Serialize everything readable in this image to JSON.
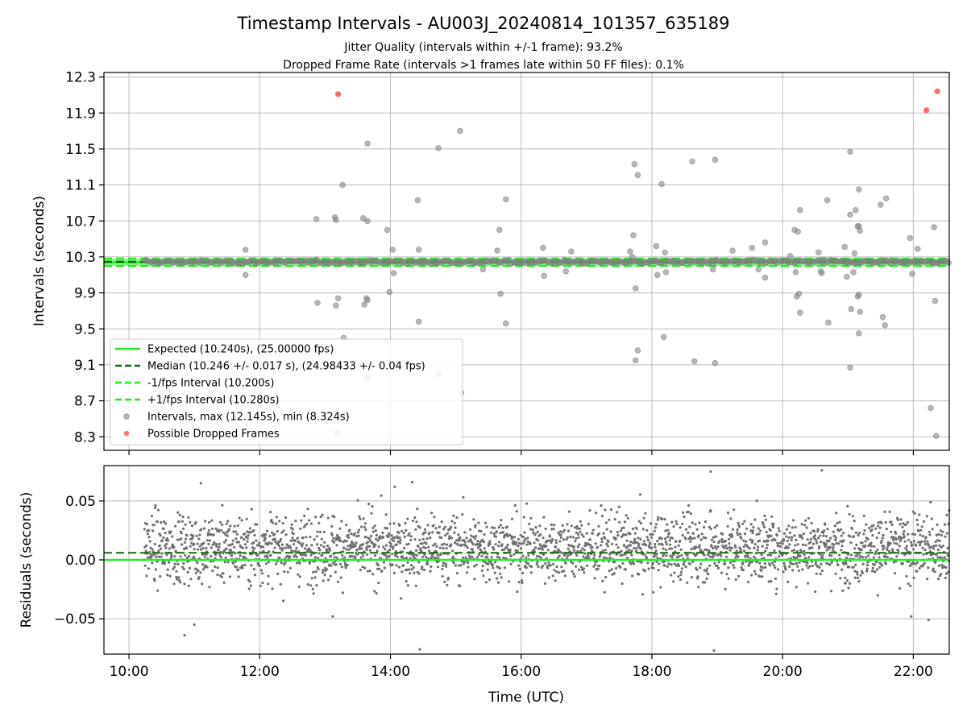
{
  "figure": {
    "title": "Timestamp Intervals - AU003J_20240814_101357_635189",
    "subtitle_1": "Jitter Quality (intervals within +/-1 frame): 93.2%",
    "subtitle_2": "Dropped Frame Rate (intervals >1 frames late within 50 FF files): 0.1%"
  },
  "colors": {
    "expected": "#22ee22",
    "median": "#0a6e0a",
    "fps_band": "#22ee22",
    "intervals": "#888888",
    "dropped": "#ff5555",
    "residuals": "#707070",
    "grid": "#bbbbbb"
  },
  "chart_data": [
    {
      "type": "scatter",
      "ylabel": "Intervals (seconds)",
      "xlim": [
        "09:37",
        "22:33"
      ],
      "ylim": [
        8.15,
        12.35
      ],
      "x_ticks": [
        "10:00",
        "12:00",
        "14:00",
        "16:00",
        "18:00",
        "20:00",
        "22:00"
      ],
      "y_ticks": [
        8.3,
        8.7,
        9.1,
        9.5,
        9.9,
        10.3,
        10.7,
        11.1,
        11.5,
        11.9,
        12.3
      ],
      "grid": true,
      "legend_position": "bottom-left",
      "series": [
        {
          "name": "Expected (10.240s), (25.00000 fps)",
          "style": "solid-line",
          "y": 10.24
        },
        {
          "name": "Median (10.246 +/- 0.017 s), (24.98433 +/- 0.04 fps)",
          "style": "dashed-line",
          "y": 10.246
        },
        {
          "name": "-1/fps Interval (10.200s)",
          "style": "dashed-line",
          "y": 10.2
        },
        {
          "name": "+1/fps Interval (10.280s)",
          "style": "dashed-line",
          "y": 10.28
        },
        {
          "name": "Intervals, max (12.145s), min (8.324s)",
          "style": "points",
          "x_start": "10:14",
          "x_end": "22:33",
          "band_center": 10.246,
          "band_halfwidth": 0.04,
          "outliers": [
            [
              "11:47",
              10.38
            ],
            [
              "11:47",
              10.1
            ],
            [
              "12:52",
              10.72
            ],
            [
              "12:53",
              9.79
            ],
            [
              "13:09",
              10.74
            ],
            [
              "13:10",
              10.71
            ],
            [
              "13:10",
              9.76
            ],
            [
              "13:11",
              8.35
            ],
            [
              "13:12",
              9.84
            ],
            [
              "13:16",
              11.1
            ],
            [
              "13:17",
              9.4
            ],
            [
              "13:35",
              10.73
            ],
            [
              "13:36",
              9.77
            ],
            [
              "13:38",
              9.84
            ],
            [
              "13:39",
              9.82
            ],
            [
              "13:39",
              10.7
            ],
            [
              "13:39",
              11.56
            ],
            [
              "13:39",
              8.95
            ],
            [
              "13:57",
              10.6
            ],
            [
              "13:59",
              9.91
            ],
            [
              "14:02",
              10.38
            ],
            [
              "14:03",
              10.12
            ],
            [
              "14:25",
              10.93
            ],
            [
              "14:26",
              9.58
            ],
            [
              "14:26",
              10.38
            ],
            [
              "14:44",
              11.51
            ],
            [
              "14:44",
              9.0
            ],
            [
              "15:04",
              11.7
            ],
            [
              "15:05",
              8.79
            ],
            [
              "15:25",
              10.16
            ],
            [
              "15:38",
              10.37
            ],
            [
              "15:40",
              10.6
            ],
            [
              "15:41",
              9.89
            ],
            [
              "15:46",
              10.94
            ],
            [
              "15:46",
              9.56
            ],
            [
              "16:20",
              10.4
            ],
            [
              "16:21",
              10.09
            ],
            [
              "16:41",
              10.14
            ],
            [
              "16:46",
              10.36
            ],
            [
              "17:40",
              10.36
            ],
            [
              "17:42",
              10.3
            ],
            [
              "17:43",
              10.54
            ],
            [
              "17:44",
              11.33
            ],
            [
              "17:45",
              9.95
            ],
            [
              "17:45",
              9.15
            ],
            [
              "17:47",
              9.26
            ],
            [
              "17:47",
              11.21
            ],
            [
              "18:04",
              10.42
            ],
            [
              "18:05",
              10.1
            ],
            [
              "18:09",
              11.11
            ],
            [
              "18:11",
              9.41
            ],
            [
              "18:12",
              10.35
            ],
            [
              "18:13",
              10.13
            ],
            [
              "18:37",
              11.36
            ],
            [
              "18:39",
              9.14
            ],
            [
              "18:56",
              10.16
            ],
            [
              "18:58",
              9.12
            ],
            [
              "18:58",
              11.38
            ],
            [
              "19:14",
              10.37
            ],
            [
              "19:32",
              10.4
            ],
            [
              "19:38",
              10.16
            ],
            [
              "19:44",
              10.07
            ],
            [
              "19:44",
              10.46
            ],
            [
              "20:07",
              10.31
            ],
            [
              "20:11",
              10.6
            ],
            [
              "20:12",
              10.13
            ],
            [
              "20:13",
              9.86
            ],
            [
              "20:14",
              10.58
            ],
            [
              "20:15",
              9.89
            ],
            [
              "20:16",
              10.82
            ],
            [
              "20:16",
              9.68
            ],
            [
              "20:33",
              10.35
            ],
            [
              "20:35",
              10.14
            ],
            [
              "20:36",
              10.12
            ],
            [
              "20:41",
              10.93
            ],
            [
              "20:42",
              9.57
            ],
            [
              "20:57",
              10.41
            ],
            [
              "20:59",
              10.08
            ],
            [
              "21:00",
              10.25
            ],
            [
              "21:02",
              11.47
            ],
            [
              "21:02",
              10.77
            ],
            [
              "21:02",
              9.07
            ],
            [
              "21:03",
              9.72
            ],
            [
              "21:05",
              10.13
            ],
            [
              "21:06",
              10.34
            ],
            [
              "21:07",
              10.82
            ],
            [
              "21:09",
              10.64
            ],
            [
              "21:09",
              9.86
            ],
            [
              "21:10",
              9.88
            ],
            [
              "21:10",
              10.64
            ],
            [
              "21:10",
              11.05
            ],
            [
              "21:10",
              9.45
            ],
            [
              "21:11",
              10.59
            ],
            [
              "21:11",
              9.69
            ],
            [
              "21:30",
              10.88
            ],
            [
              "21:32",
              9.63
            ],
            [
              "21:34",
              9.54
            ],
            [
              "21:35",
              10.95
            ],
            [
              "21:57",
              10.51
            ],
            [
              "21:59",
              10.11
            ],
            [
              "22:04",
              10.39
            ],
            [
              "22:16",
              8.62
            ],
            [
              "22:18",
              10.24
            ],
            [
              "22:19",
              10.63
            ],
            [
              "22:20",
              9.81
            ],
            [
              "22:21",
              8.31
            ]
          ]
        },
        {
          "name": "Possible Dropped Frames",
          "style": "points",
          "points": [
            [
              "13:12",
              12.11
            ],
            [
              "22:12",
              11.93
            ],
            [
              "22:22",
              12.14
            ]
          ]
        }
      ]
    },
    {
      "type": "scatter",
      "xlabel": "Time (UTC)",
      "ylabel": "Residuals (seconds)",
      "xlim": [
        "09:37",
        "22:33"
      ],
      "ylim": [
        -0.08,
        0.08
      ],
      "x_ticks": [
        "10:00",
        "12:00",
        "14:00",
        "16:00",
        "18:00",
        "20:00",
        "22:00"
      ],
      "y_ticks": [
        {
          "value": 0.05,
          "label": "0.05"
        },
        {
          "value": 0.0,
          "label": "0.00"
        },
        {
          "value": -0.05,
          "label": "−0.05"
        }
      ],
      "grid": true,
      "series": [
        {
          "name": "Expected",
          "style": "solid-line",
          "y": 0.0
        },
        {
          "name": "Median",
          "style": "dashed-line",
          "y": 0.006
        },
        {
          "name": "Residuals",
          "style": "points",
          "x_start": "10:14",
          "x_end": "22:33",
          "typical_range": [
            -0.03,
            0.05
          ],
          "extreme_points": [
            [
              "10:51",
              -0.064
            ],
            [
              "11:00",
              -0.055
            ],
            [
              "11:06",
              0.065
            ],
            [
              "13:07",
              -0.048
            ],
            [
              "14:04",
              0.062
            ],
            [
              "14:27",
              -0.076
            ],
            [
              "14:20",
              0.066
            ],
            [
              "18:54",
              0.075
            ],
            [
              "18:57",
              -0.077
            ],
            [
              "20:36",
              0.076
            ],
            [
              "21:58",
              -0.048
            ],
            [
              "22:14",
              -0.051
            ]
          ]
        }
      ]
    }
  ]
}
